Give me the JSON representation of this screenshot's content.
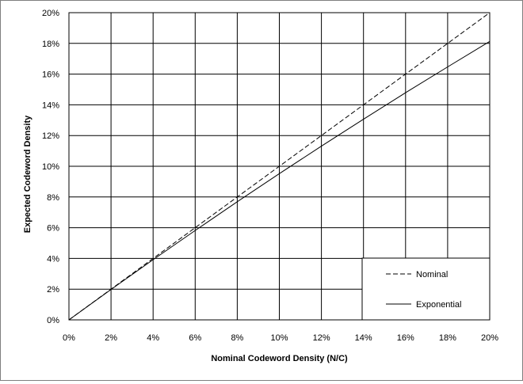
{
  "chart_data": {
    "type": "line",
    "title": "",
    "xlabel": "Nominal Codeword Density (N/C)",
    "ylabel": "Expected Codeword Density",
    "xlim": [
      0,
      20
    ],
    "ylim": [
      0,
      20
    ],
    "x_ticks": [
      "0%",
      "2%",
      "4%",
      "6%",
      "8%",
      "10%",
      "12%",
      "14%",
      "16%",
      "18%",
      "20%"
    ],
    "y_ticks": [
      "0%",
      "2%",
      "4%",
      "6%",
      "8%",
      "10%",
      "12%",
      "14%",
      "16%",
      "18%",
      "20%"
    ],
    "grid": true,
    "legend_position": "bottom-right",
    "series": [
      {
        "name": "Nominal",
        "style": "dashed",
        "color": "#000000",
        "x": [
          0,
          2,
          4,
          6,
          8,
          10,
          12,
          14,
          16,
          18,
          20
        ],
        "y": [
          0,
          2,
          4,
          6,
          8,
          10,
          12,
          14,
          16,
          18,
          20
        ]
      },
      {
        "name": "Exponential",
        "style": "solid",
        "color": "#000000",
        "x": [
          0,
          2,
          4,
          6,
          8,
          10,
          12,
          14,
          16,
          18,
          20
        ],
        "y": [
          0,
          1.98,
          3.92,
          5.82,
          7.69,
          9.52,
          11.31,
          13.06,
          14.79,
          16.47,
          18.13
        ]
      }
    ]
  }
}
